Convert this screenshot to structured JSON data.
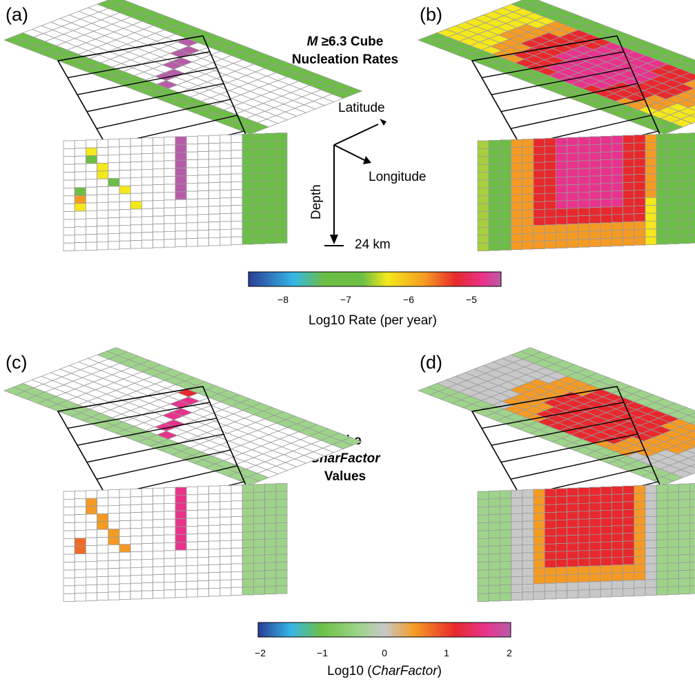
{
  "labels": {
    "a": "(a)",
    "b": "(b)",
    "c": "(c)",
    "d": "(d)"
  },
  "title_top": {
    "line1_italic": "M",
    "line1_rest": " ≥6.3 Cube",
    "line2": "Nucleation Rates"
  },
  "title_bottom": {
    "line1": "Cube",
    "line2_italic": "CharFactor",
    "line3": "Values"
  },
  "axes": {
    "latitude": "Latitude",
    "longitude": "Longitude",
    "depth": "Depth",
    "depth_scale": "24 km"
  },
  "colorbar_rate": {
    "ticks": [
      "−8",
      "−7",
      "−6",
      "−5"
    ],
    "title": "Log10 Rate (per year)"
  },
  "colorbar_char": {
    "ticks": [
      "−2",
      "−1",
      "0",
      "1",
      "2"
    ],
    "title_prefix": "Log10 (",
    "title_italic": "CharFactor",
    "title_suffix": ")"
  },
  "colors": {
    "green": "#6cbf45",
    "light_green": "#9ed48a",
    "yellow": "#f5e81b",
    "orange": "#f59a23",
    "red": "#e8282d",
    "magenta": "#e8338c",
    "purple": "#b85ca8",
    "grey": "#c8c8c8",
    "grid": "#9a9a9a"
  }
}
